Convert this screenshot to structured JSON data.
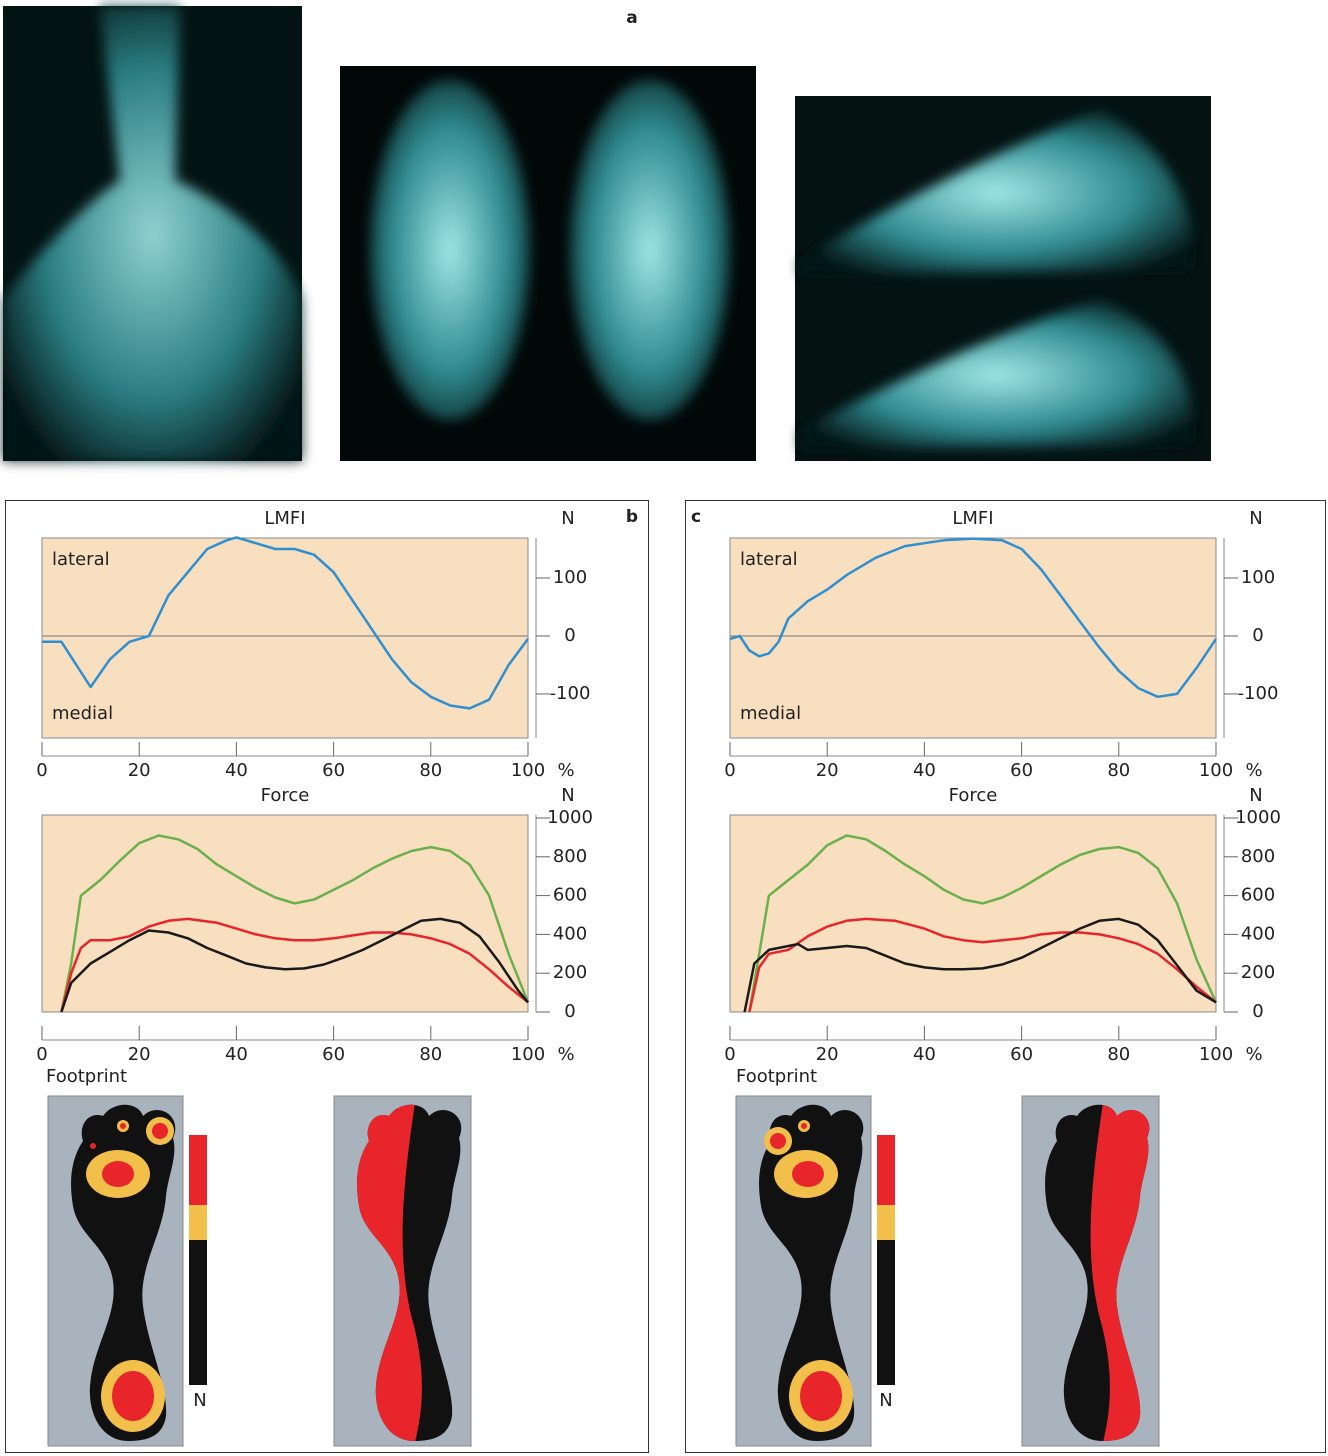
{
  "panel_labels": [
    "a",
    "b",
    "c"
  ],
  "footprints": [
    {
      "title": "Footprint",
      "scale_unit": "N"
    },
    {
      "title": "Footprint",
      "scale_unit": "N"
    }
  ],
  "chart_data": [
    {
      "type": "line",
      "title": "LMFI",
      "y_unit": "N",
      "x_unit": "%",
      "annotations": [
        "lateral",
        "medial"
      ],
      "zero_line": true,
      "xlim": [
        0,
        100
      ],
      "xticks": [
        0,
        20,
        40,
        60,
        80,
        100
      ],
      "ylim": [
        -176,
        169
      ],
      "yticks": [
        -100,
        0,
        100
      ],
      "series": [
        {
          "color": "#2f8fd0",
          "x": [
            0,
            4,
            10,
            14,
            18,
            22,
            26,
            30,
            34,
            38,
            40,
            44,
            48,
            52,
            56,
            60,
            64,
            68,
            72,
            76,
            80,
            84,
            88,
            92,
            96,
            100
          ],
          "values": [
            -10,
            -10,
            -88,
            -40,
            -10,
            0,
            70,
            110,
            150,
            165,
            170,
            160,
            150,
            150,
            140,
            110,
            60,
            10,
            -40,
            -80,
            -105,
            -120,
            -125,
            -110,
            -50,
            -5
          ]
        }
      ]
    },
    {
      "type": "line",
      "title": "Force",
      "y_unit": "N",
      "x_unit": "%",
      "xlim": [
        0,
        100
      ],
      "xticks": [
        0,
        20,
        40,
        60,
        80,
        100
      ],
      "ylim": [
        0,
        1000
      ],
      "yticks": [
        0,
        200,
        400,
        600,
        800,
        1000
      ],
      "series": [
        {
          "color": "#6ab04c",
          "x": [
            4,
            6,
            8,
            12,
            16,
            20,
            24,
            28,
            32,
            36,
            40,
            44,
            48,
            52,
            56,
            60,
            64,
            68,
            72,
            76,
            80,
            84,
            88,
            92,
            96,
            100
          ],
          "values": [
            0,
            250,
            600,
            680,
            780,
            870,
            910,
            890,
            840,
            760,
            700,
            640,
            590,
            560,
            580,
            630,
            680,
            740,
            790,
            830,
            850,
            830,
            760,
            600,
            300,
            50
          ]
        },
        {
          "color": "#e8252a",
          "x": [
            4,
            6,
            8,
            10,
            14,
            18,
            22,
            26,
            30,
            36,
            40,
            44,
            48,
            52,
            56,
            60,
            64,
            68,
            72,
            76,
            80,
            84,
            88,
            92,
            96,
            100
          ],
          "values": [
            0,
            200,
            330,
            370,
            370,
            390,
            440,
            470,
            480,
            460,
            430,
            400,
            380,
            370,
            370,
            380,
            395,
            410,
            410,
            400,
            380,
            350,
            300,
            220,
            130,
            50
          ]
        },
        {
          "color": "#1a1a1a",
          "x": [
            4,
            6,
            10,
            14,
            18,
            22,
            26,
            30,
            34,
            38,
            42,
            46,
            50,
            54,
            58,
            62,
            66,
            70,
            74,
            78,
            82,
            86,
            90,
            94,
            98,
            100
          ],
          "values": [
            0,
            150,
            250,
            310,
            370,
            420,
            410,
            380,
            330,
            290,
            250,
            230,
            220,
            225,
            245,
            280,
            320,
            370,
            420,
            470,
            480,
            460,
            390,
            260,
            110,
            50
          ]
        }
      ]
    },
    {
      "type": "line",
      "title": "LMFI",
      "y_unit": "N",
      "x_unit": "%",
      "annotations": [
        "lateral",
        "medial"
      ],
      "zero_line": true,
      "xlim": [
        0,
        100
      ],
      "xticks": [
        0,
        20,
        40,
        60,
        80,
        100
      ],
      "ylim": [
        -176,
        169
      ],
      "yticks": [
        -100,
        0,
        100
      ],
      "series": [
        {
          "color": "#2f8fd0",
          "x": [
            0,
            2,
            4,
            6,
            8,
            10,
            12,
            16,
            20,
            24,
            30,
            36,
            40,
            44,
            50,
            56,
            60,
            64,
            68,
            72,
            76,
            80,
            84,
            88,
            92,
            96,
            100
          ],
          "values": [
            -5,
            0,
            -25,
            -35,
            -30,
            -10,
            30,
            60,
            80,
            105,
            135,
            155,
            160,
            165,
            168,
            165,
            150,
            115,
            70,
            25,
            -20,
            -60,
            -90,
            -105,
            -100,
            -55,
            -5
          ]
        }
      ]
    },
    {
      "type": "line",
      "title": "Force",
      "y_unit": "N",
      "x_unit": "%",
      "xlim": [
        0,
        100
      ],
      "xticks": [
        0,
        20,
        40,
        60,
        80,
        100
      ],
      "ylim": [
        0,
        1000
      ],
      "yticks": [
        0,
        200,
        400,
        600,
        800,
        1000
      ],
      "series": [
        {
          "color": "#6ab04c",
          "x": [
            4,
            6,
            8,
            12,
            16,
            20,
            24,
            28,
            32,
            36,
            40,
            44,
            48,
            52,
            56,
            60,
            64,
            68,
            72,
            76,
            80,
            84,
            88,
            92,
            96,
            100
          ],
          "values": [
            0,
            300,
            600,
            680,
            760,
            860,
            910,
            890,
            830,
            760,
            700,
            630,
            580,
            560,
            590,
            640,
            700,
            760,
            810,
            840,
            850,
            820,
            740,
            560,
            270,
            50
          ]
        },
        {
          "color": "#e8252a",
          "x": [
            4,
            6,
            8,
            12,
            16,
            20,
            24,
            28,
            34,
            40,
            44,
            48,
            52,
            56,
            60,
            64,
            68,
            72,
            76,
            80,
            84,
            88,
            92,
            96,
            100
          ],
          "values": [
            0,
            230,
            300,
            320,
            390,
            440,
            470,
            480,
            470,
            430,
            390,
            370,
            360,
            370,
            380,
            400,
            410,
            410,
            400,
            380,
            350,
            300,
            220,
            130,
            50
          ]
        },
        {
          "color": "#1a1a1a",
          "x": [
            3,
            5,
            8,
            12,
            14,
            16,
            20,
            24,
            28,
            32,
            36,
            40,
            44,
            48,
            52,
            56,
            60,
            64,
            68,
            72,
            76,
            80,
            84,
            88,
            92,
            96,
            100
          ],
          "values": [
            0,
            250,
            320,
            340,
            350,
            320,
            330,
            340,
            330,
            290,
            250,
            230,
            220,
            220,
            225,
            245,
            280,
            330,
            380,
            430,
            470,
            480,
            450,
            370,
            240,
            110,
            50
          ]
        }
      ]
    }
  ]
}
